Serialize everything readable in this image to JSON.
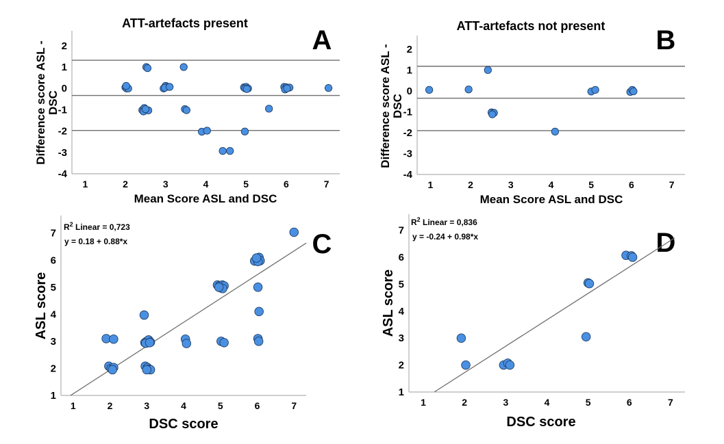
{
  "colors": {
    "point_fill": "#4a90e2",
    "point_stroke": "#1f3f66",
    "axis": "#b0b0b0",
    "ref_line": "#6e6e6e"
  },
  "chart_data": [
    {
      "id": "A",
      "type": "scatter",
      "panel_label": "A",
      "title": "ATT-artefacts present",
      "xlabel": "Mean Score ASL and DSC",
      "ylabel_lines": [
        "Difference score ASL -",
        "DSC"
      ],
      "xlim": [
        0.67,
        7.33
      ],
      "ylim": [
        -4,
        2.7
      ],
      "xticks": [
        "1",
        "2",
        "3",
        "4",
        "5",
        "6",
        "7"
      ],
      "yticks": [
        "2",
        "1",
        "0",
        "-1",
        "-2",
        "-3",
        "-4"
      ],
      "reference_lines": {
        "upper_loa": 1.32,
        "mean_difference": -0.33,
        "lower_loa": -1.97
      },
      "points": [
        [
          2.0,
          0.05
        ],
        [
          2.03,
          0.0
        ],
        [
          2.07,
          0.0
        ],
        [
          2.02,
          0.12
        ],
        [
          2.52,
          1.0
        ],
        [
          2.55,
          0.95
        ],
        [
          2.42,
          -1.02
        ],
        [
          2.47,
          -0.92
        ],
        [
          2.45,
          -1.08
        ],
        [
          2.57,
          -1.03
        ],
        [
          2.5,
          -0.97
        ],
        [
          2.95,
          0.0
        ],
        [
          3.0,
          0.12
        ],
        [
          3.05,
          0.08
        ],
        [
          2.98,
          0.03
        ],
        [
          3.1,
          0.07
        ],
        [
          3.45,
          1.0
        ],
        [
          3.48,
          -0.97
        ],
        [
          3.52,
          -1.02
        ],
        [
          3.9,
          -2.03
        ],
        [
          4.03,
          -1.98
        ],
        [
          4.42,
          -2.93
        ],
        [
          4.6,
          -2.93
        ],
        [
          4.95,
          0.05
        ],
        [
          5.0,
          0.07
        ],
        [
          5.05,
          0.0
        ],
        [
          4.98,
          0.0
        ],
        [
          5.02,
          -0.03
        ],
        [
          4.97,
          -2.02
        ],
        [
          5.57,
          -0.95
        ],
        [
          5.95,
          0.07
        ],
        [
          6.0,
          0.05
        ],
        [
          6.05,
          0.03
        ],
        [
          5.97,
          -0.05
        ],
        [
          6.08,
          0.04
        ],
        [
          6.02,
          0.0
        ],
        [
          7.05,
          0.02
        ]
      ]
    },
    {
      "id": "B",
      "type": "scatter",
      "panel_label": "B",
      "title": "ATT-artefacts not present",
      "xlabel": "Mean Score ASL and DSC",
      "ylabel_lines": [
        "Difference score ASL -",
        "DSC"
      ],
      "xlim": [
        0.67,
        7.33
      ],
      "ylim": [
        -4,
        2.65
      ],
      "xticks": [
        "1",
        "2",
        "3",
        "4",
        "5",
        "6",
        "7"
      ],
      "yticks": [
        "2",
        "1",
        "0",
        "-1",
        "-2",
        "-3",
        "-4"
      ],
      "reference_lines": {
        "upper_loa": 1.18,
        "mean_difference": -0.35,
        "lower_loa": -1.9
      },
      "points": [
        [
          0.97,
          0.05
        ],
        [
          1.95,
          0.07
        ],
        [
          2.43,
          1.0
        ],
        [
          2.52,
          -1.03
        ],
        [
          2.58,
          -1.05
        ],
        [
          2.54,
          -1.12
        ],
        [
          4.1,
          -1.95
        ],
        [
          5.0,
          -0.03
        ],
        [
          5.1,
          0.05
        ],
        [
          5.97,
          -0.05
        ],
        [
          6.02,
          0.05
        ],
        [
          6.05,
          -0.02
        ]
      ]
    },
    {
      "id": "C",
      "type": "scatter",
      "panel_label": "C",
      "xlabel": "DSC score",
      "ylabel": "ASL score",
      "xlim": [
        0.67,
        7.33
      ],
      "ylim": [
        1,
        7.65
      ],
      "xticks": [
        "1",
        "2",
        "3",
        "4",
        "5",
        "6",
        "7"
      ],
      "yticks": [
        "7",
        "6",
        "5",
        "4",
        "3",
        "2",
        "1"
      ],
      "fit": {
        "r2_label": "R",
        "r2_sup": "2",
        "r2_text": " Linear = 0,723",
        "equation": "y = 0.18 + 0.88*x",
        "intercept": 0.18,
        "slope": 0.88,
        "x_range": [
          0.93,
          7.33
        ]
      },
      "points": [
        [
          1.9,
          3.1
        ],
        [
          2.1,
          3.08
        ],
        [
          1.97,
          2.08
        ],
        [
          2.03,
          2.0
        ],
        [
          2.1,
          2.03
        ],
        [
          2.07,
          1.95
        ],
        [
          2.93,
          3.97
        ],
        [
          2.95,
          2.95
        ],
        [
          3.0,
          3.0
        ],
        [
          3.05,
          3.05
        ],
        [
          3.1,
          2.97
        ],
        [
          2.97,
          2.93
        ],
        [
          3.08,
          2.95
        ],
        [
          2.96,
          2.08
        ],
        [
          3.02,
          2.03
        ],
        [
          3.06,
          1.97
        ],
        [
          3.1,
          1.95
        ],
        [
          3.0,
          1.95
        ],
        [
          4.05,
          3.08
        ],
        [
          4.08,
          2.92
        ],
        [
          4.92,
          5.08
        ],
        [
          4.98,
          5.05
        ],
        [
          5.05,
          5.08
        ],
        [
          5.1,
          5.05
        ],
        [
          5.0,
          4.98
        ],
        [
          5.06,
          4.95
        ],
        [
          4.96,
          5.0
        ],
        [
          5.02,
          3.0
        ],
        [
          5.1,
          2.95
        ],
        [
          5.93,
          5.97
        ],
        [
          6.0,
          6.05
        ],
        [
          6.05,
          6.1
        ],
        [
          6.08,
          5.98
        ],
        [
          6.02,
          5.95
        ],
        [
          5.98,
          6.08
        ],
        [
          6.02,
          5.0
        ],
        [
          6.05,
          4.1
        ],
        [
          6.02,
          3.1
        ],
        [
          6.04,
          3.0
        ],
        [
          7.0,
          7.03
        ]
      ]
    },
    {
      "id": "D",
      "type": "scatter",
      "panel_label": "D",
      "xlabel": "DSC score",
      "ylabel": "ASL score",
      "xlim": [
        0.65,
        7.35
      ],
      "ylim": [
        1,
        7.6
      ],
      "xticks": [
        "1",
        "2",
        "3",
        "4",
        "5",
        "6",
        "7"
      ],
      "yticks": [
        "7",
        "6",
        "5",
        "4",
        "3",
        "2",
        "1"
      ],
      "fit": {
        "r2_label": "R",
        "r2_sup": "2",
        "r2_text": " Linear = 0,836",
        "equation": "y = -0.24 + 0.98*x",
        "intercept": -0.24,
        "slope": 0.98,
        "x_range": [
          1.27,
          7.1
        ]
      },
      "points": [
        [
          1.92,
          3.0
        ],
        [
          2.03,
          2.0
        ],
        [
          2.95,
          2.0
        ],
        [
          3.05,
          2.07
        ],
        [
          3.1,
          2.0
        ],
        [
          4.95,
          3.05
        ],
        [
          5.0,
          5.05
        ],
        [
          5.03,
          5.02
        ],
        [
          5.92,
          6.07
        ],
        [
          6.05,
          6.05
        ],
        [
          6.08,
          6.0
        ]
      ]
    }
  ]
}
